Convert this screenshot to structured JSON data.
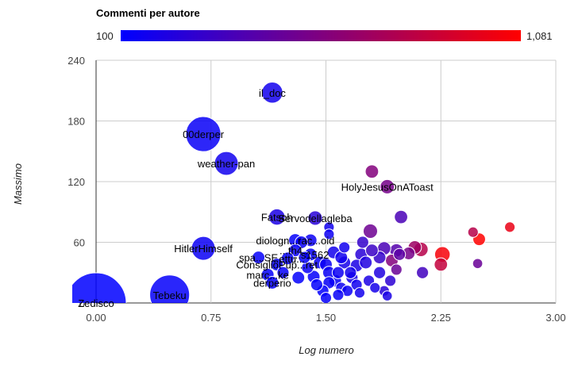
{
  "chart_data": {
    "type": "scatter",
    "title": "",
    "legend": {
      "title": "Commenti per autore",
      "min_label": "100",
      "max_label": "1,081",
      "min": 100,
      "max": 1081,
      "colors": [
        "#0000ff",
        "#ff0000"
      ],
      "placement": "top"
    },
    "xlabel": "Log numero",
    "ylabel": "Massimo",
    "xlim": [
      0,
      3
    ],
    "ylim": [
      0,
      240
    ],
    "xticks": [
      "0.00",
      "0.75",
      "1.50",
      "2.25",
      "3.00"
    ],
    "xtick_values": [
      0,
      0.75,
      1.5,
      2.25,
      3
    ],
    "yticks": [
      "0",
      "60",
      "120",
      "180",
      "240"
    ],
    "ytick_values": [
      0,
      60,
      120,
      180,
      240
    ],
    "grid": true,
    "points": [
      {
        "label": "Zedisco",
        "x": 0.0,
        "y": 0,
        "size": 1.0,
        "color": 100
      },
      {
        "label": "Tebeku",
        "x": 0.48,
        "y": 8,
        "size": 0.78,
        "color": 120
      },
      {
        "label": "00derper",
        "x": 0.7,
        "y": 167,
        "size": 0.72,
        "color": 130
      },
      {
        "label": "weather-pan",
        "x": 0.85,
        "y": 138,
        "size": 0.55,
        "color": 160
      },
      {
        "label": "HitlerHimself",
        "x": 0.7,
        "y": 54,
        "size": 0.55,
        "color": 140
      },
      {
        "label": "il_doc",
        "x": 1.15,
        "y": 208,
        "size": 0.5,
        "color": 170
      },
      {
        "label": "Fatsoh",
        "x": 1.18,
        "y": 85,
        "size": 0.4,
        "color": 200
      },
      {
        "label": "Servodellagleba",
        "x": 1.43,
        "y": 84,
        "size": 0.35,
        "color": 250
      },
      {
        "label": "HolyJesusOnAToast",
        "x": 1.9,
        "y": 115,
        "size": 0.35,
        "color": 550
      },
      {
        "label": "",
        "x": 1.8,
        "y": 130,
        "size": 0.32,
        "color": 600
      },
      {
        "label": "",
        "x": 1.99,
        "y": 85,
        "size": 0.32,
        "color": 380
      },
      {
        "label": "",
        "x": 1.79,
        "y": 71,
        "size": 0.35,
        "color": 520
      },
      {
        "label": "",
        "x": 2.46,
        "y": 70,
        "size": 0.22,
        "color": 800
      },
      {
        "label": "",
        "x": 2.7,
        "y": 75,
        "size": 0.22,
        "color": 1000
      },
      {
        "label": "",
        "x": 2.5,
        "y": 63,
        "size": 0.3,
        "color": 1081
      },
      {
        "label": "",
        "x": 2.26,
        "y": 48,
        "size": 0.38,
        "color": 1050
      },
      {
        "label": "",
        "x": 2.25,
        "y": 38,
        "size": 0.32,
        "color": 850
      },
      {
        "label": "",
        "x": 2.49,
        "y": 39,
        "size": 0.2,
        "color": 500
      },
      {
        "label": "",
        "x": 2.13,
        "y": 30,
        "size": 0.28,
        "color": 350
      },
      {
        "label": "",
        "x": 2.08,
        "y": 55,
        "size": 0.32,
        "color": 700
      },
      {
        "label": "",
        "x": 2.12,
        "y": 53,
        "size": 0.35,
        "color": 800
      },
      {
        "label": "",
        "x": 2.04,
        "y": 49,
        "size": 0.3,
        "color": 550
      },
      {
        "label": "",
        "x": 1.96,
        "y": 52,
        "size": 0.32,
        "color": 420
      },
      {
        "label": "",
        "x": 1.88,
        "y": 54,
        "size": 0.32,
        "color": 380
      },
      {
        "label": "",
        "x": 1.93,
        "y": 42,
        "size": 0.3,
        "color": 600
      },
      {
        "label": "",
        "x": 1.85,
        "y": 45,
        "size": 0.3,
        "color": 300
      },
      {
        "label": "",
        "x": 1.96,
        "y": 33,
        "size": 0.25,
        "color": 500
      },
      {
        "label": "",
        "x": 1.85,
        "y": 30,
        "size": 0.28,
        "color": 220
      },
      {
        "label": "",
        "x": 1.74,
        "y": 60,
        "size": 0.28,
        "color": 300
      },
      {
        "label": "",
        "x": 1.73,
        "y": 48,
        "size": 0.3,
        "color": 250
      },
      {
        "label": "",
        "x": 1.7,
        "y": 37,
        "size": 0.3,
        "color": 200
      },
      {
        "label": "",
        "x": 1.62,
        "y": 40,
        "size": 0.3,
        "color": 180
      },
      {
        "label": "",
        "x": 1.67,
        "y": 25,
        "size": 0.28,
        "color": 180
      },
      {
        "label": "",
        "x": 1.58,
        "y": 30,
        "size": 0.28,
        "color": 150
      },
      {
        "label": "",
        "x": 1.55,
        "y": 50,
        "size": 0.3,
        "color": 170
      },
      {
        "label": "",
        "x": 1.52,
        "y": 20,
        "size": 0.28,
        "color": 130
      },
      {
        "label": "",
        "x": 1.6,
        "y": 15,
        "size": 0.25,
        "color": 150
      },
      {
        "label": "",
        "x": 1.7,
        "y": 18,
        "size": 0.25,
        "color": 160
      },
      {
        "label": "",
        "x": 1.78,
        "y": 22,
        "size": 0.25,
        "color": 200
      },
      {
        "label": "",
        "x": 1.88,
        "y": 12,
        "size": 0.22,
        "color": 250
      },
      {
        "label": "",
        "x": 1.46,
        "y": 40,
        "size": 0.3,
        "color": 130
      },
      {
        "label": "",
        "x": 1.42,
        "y": 26,
        "size": 0.3,
        "color": 120
      },
      {
        "label": "",
        "x": 1.38,
        "y": 35,
        "size": 0.28,
        "color": 130
      },
      {
        "label": "",
        "x": 1.48,
        "y": 12,
        "size": 0.28,
        "color": 110
      },
      {
        "label": "",
        "x": 1.4,
        "y": 62,
        "size": 0.3,
        "color": 140
      },
      {
        "label": "",
        "x": 1.34,
        "y": 60,
        "size": 0.3,
        "color": 130
      },
      {
        "label": "",
        "x": 1.52,
        "y": 75,
        "size": 0.22,
        "color": 160
      },
      {
        "label": "",
        "x": 1.52,
        "y": 68,
        "size": 0.22,
        "color": 150
      },
      {
        "label": "diologn...rac...oid",
        "x": 1.3,
        "y": 62,
        "size": 0.32,
        "color": 120
      },
      {
        "label": "...th4...",
        "x": 1.3,
        "y": 52,
        "size": 0.3,
        "color": 130
      },
      {
        "label": "...s1562",
        "x": 1.4,
        "y": 48,
        "size": 0.3,
        "color": 120
      },
      {
        "label": "spa...SE",
        "x": 1.06,
        "y": 45,
        "size": 0.3,
        "color": 120
      },
      {
        "label": "...ettu...",
        "x": 1.25,
        "y": 44,
        "size": 0.3,
        "color": 110
      },
      {
        "label": "ConsiglioPup...ret",
        "x": 1.18,
        "y": 38,
        "size": 0.3,
        "color": 120
      },
      {
        "label": "marc...ke",
        "x": 1.12,
        "y": 28,
        "size": 0.3,
        "color": 110
      },
      {
        "label": "derperio",
        "x": 1.15,
        "y": 20,
        "size": 0.3,
        "color": 110
      },
      {
        "label": "",
        "x": 1.22,
        "y": 30,
        "size": 0.28,
        "color": 120
      },
      {
        "label": "",
        "x": 1.32,
        "y": 25,
        "size": 0.3,
        "color": 110
      },
      {
        "label": "",
        "x": 1.36,
        "y": 45,
        "size": 0.28,
        "color": 120
      },
      {
        "label": "",
        "x": 1.44,
        "y": 18,
        "size": 0.28,
        "color": 110
      },
      {
        "label": "",
        "x": 1.56,
        "y": 22,
        "size": 0.3,
        "color": 130
      },
      {
        "label": "",
        "x": 1.62,
        "y": 55,
        "size": 0.25,
        "color": 160
      },
      {
        "label": "",
        "x": 1.66,
        "y": 30,
        "size": 0.28,
        "color": 170
      },
      {
        "label": "",
        "x": 1.76,
        "y": 40,
        "size": 0.3,
        "color": 220
      },
      {
        "label": "",
        "x": 1.8,
        "y": 52,
        "size": 0.3,
        "color": 320
      },
      {
        "label": "",
        "x": 1.92,
        "y": 22,
        "size": 0.25,
        "color": 270
      },
      {
        "label": "",
        "x": 1.98,
        "y": 48,
        "size": 0.28,
        "color": 450
      },
      {
        "label": "",
        "x": 1.5,
        "y": 38,
        "size": 0.3,
        "color": 140
      },
      {
        "label": "",
        "x": 1.6,
        "y": 45,
        "size": 0.3,
        "color": 160
      },
      {
        "label": "",
        "x": 1.52,
        "y": 30,
        "size": 0.3,
        "color": 135
      },
      {
        "label": "",
        "x": 1.64,
        "y": 12,
        "size": 0.25,
        "color": 140
      },
      {
        "label": "",
        "x": 1.58,
        "y": 8,
        "size": 0.25,
        "color": 130
      },
      {
        "label": "",
        "x": 1.5,
        "y": 5,
        "size": 0.25,
        "color": 120
      },
      {
        "label": "",
        "x": 1.72,
        "y": 10,
        "size": 0.22,
        "color": 170
      },
      {
        "label": "",
        "x": 1.9,
        "y": 7,
        "size": 0.2,
        "color": 200
      },
      {
        "label": "",
        "x": 1.82,
        "y": 15,
        "size": 0.22,
        "color": 180
      }
    ]
  }
}
